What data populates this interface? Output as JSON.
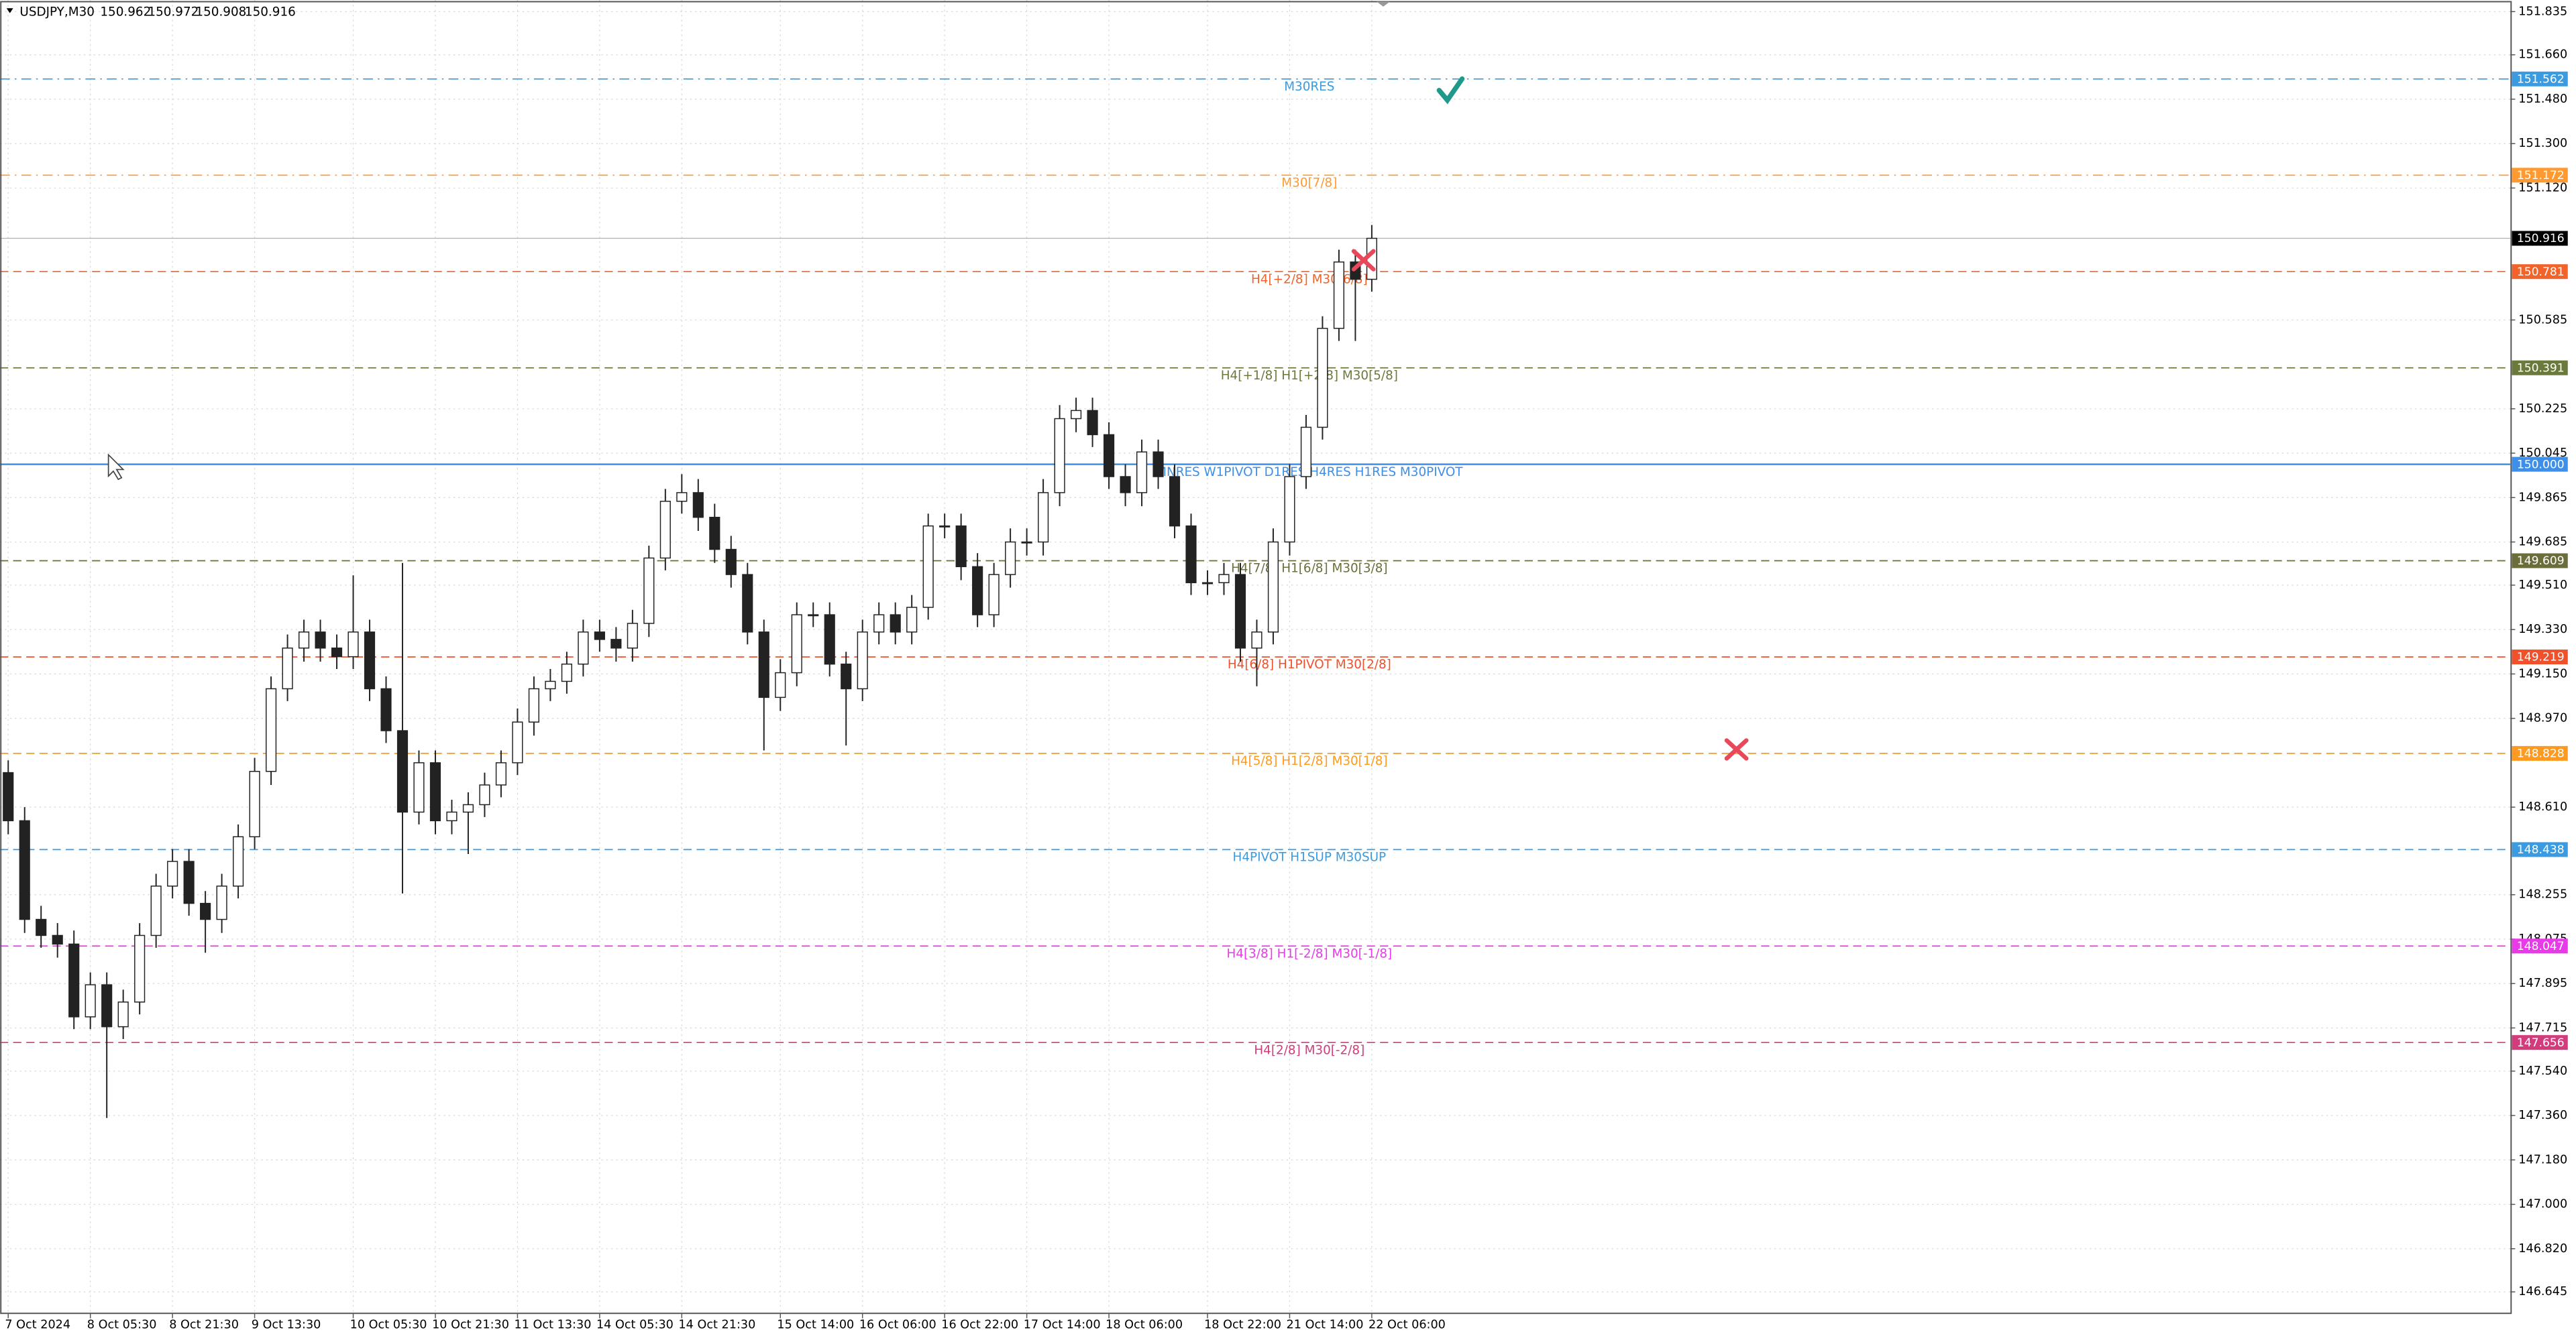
{
  "chart_data": {
    "type": "candlestick",
    "symbol": "USDJPY,M30",
    "quote": [
      150.962,
      150.972,
      150.908,
      150.916
    ],
    "ylim": [
      146.558,
      151.882
    ],
    "yticks": [
      151.835,
      {
        "value": 151.66,
        "label": "151.660"
      },
      {
        "value": 151.48,
        "label": "151.480"
      },
      {
        "value": 151.3,
        "label": "151.300"
      },
      {
        "value": 151.12,
        "label": "151.120"
      },
      150.585,
      150.225,
      150.045,
      149.865,
      149.685,
      {
        "value": 149.51,
        "label": "149.510"
      },
      {
        "value": 149.33,
        "label": "149.330"
      },
      {
        "value": 149.15,
        "label": "149.150"
      },
      {
        "value": 148.97,
        "label": "148.970"
      },
      {
        "value": 148.61,
        "label": "148.610"
      },
      148.255,
      148.075,
      147.895,
      147.715,
      {
        "value": 147.54,
        "label": "147.540"
      },
      {
        "value": 147.36,
        "label": "147.360"
      },
      {
        "value": 147.18,
        "label": "147.180"
      },
      {
        "value": 147.0,
        "label": "147.000"
      },
      {
        "value": 146.82,
        "label": "146.820"
      },
      146.645
    ],
    "grid": true,
    "categories": [
      "7 Oct 2024",
      null,
      null,
      null,
      null,
      "8 Oct 05:30",
      null,
      null,
      null,
      null,
      "8 Oct 21:30",
      null,
      null,
      null,
      null,
      "9 Oct 13:30",
      null,
      null,
      null,
      null,
      null,
      "10 Oct 05:30",
      null,
      null,
      null,
      null,
      "10 Oct 21:30",
      null,
      null,
      null,
      null,
      "11 Oct 13:30",
      null,
      null,
      null,
      null,
      "14 Oct 05:30",
      null,
      null,
      null,
      null,
      "14 Oct 21:30",
      null,
      null,
      null,
      null,
      null,
      "15 Oct 14:00",
      null,
      null,
      null,
      null,
      "16 Oct 06:00",
      null,
      null,
      null,
      null,
      "16 Oct 22:00",
      null,
      null,
      null,
      null,
      "17 Oct 14:00",
      null,
      null,
      null,
      null,
      "18 Oct 06:00",
      null,
      null,
      null,
      null,
      null,
      "18 Oct 22:00",
      null,
      null,
      null,
      null,
      "21 Oct 14:00",
      null,
      null,
      null,
      null,
      "22 Oct 06:00"
    ],
    "open": [
      148.75,
      148.555,
      148.155,
      148.09,
      148.055,
      147.76,
      147.89,
      147.72,
      147.82,
      148.09,
      148.29,
      148.39,
      148.22,
      148.155,
      148.29,
      148.49,
      148.755,
      149.09,
      149.255,
      149.32,
      149.255,
      149.22,
      149.32,
      149.09,
      148.92,
      148.59,
      148.79,
      148.555,
      148.59,
      148.62,
      148.7,
      148.79,
      148.955,
      149.09,
      149.12,
      149.19,
      149.32,
      149.29,
      149.255,
      149.355,
      149.62,
      149.85,
      149.885,
      149.785,
      149.655,
      149.553,
      149.32,
      149.055,
      149.155,
      149.39,
      149.39,
      149.19,
      149.09,
      149.32,
      149.39,
      149.32,
      149.42,
      149.75,
      149.75,
      149.585,
      149.39,
      149.553,
      149.685,
      149.685,
      149.885,
      150.185,
      150.218,
      150.12,
      149.95,
      149.885,
      150.05,
      149.95,
      149.75,
      149.52,
      149.52,
      149.553,
      149.255,
      149.32,
      149.685,
      149.95,
      150.15,
      150.551,
      150.82,
      150.75
    ],
    "high": [
      148.8,
      148.61,
      148.21,
      148.14,
      148.11,
      147.94,
      147.94,
      147.87,
      148.14,
      148.34,
      148.44,
      148.44,
      148.27,
      148.34,
      148.54,
      148.81,
      149.14,
      149.31,
      149.37,
      149.37,
      149.31,
      149.55,
      149.37,
      149.14,
      149.6,
      148.84,
      148.84,
      148.64,
      148.67,
      148.75,
      148.84,
      149.01,
      149.14,
      149.17,
      149.24,
      149.37,
      149.37,
      149.34,
      149.41,
      149.67,
      149.9,
      149.96,
      149.94,
      149.84,
      149.71,
      149.6,
      149.37,
      149.21,
      149.44,
      149.44,
      149.44,
      149.24,
      149.37,
      149.44,
      149.44,
      149.47,
      149.8,
      149.8,
      149.8,
      149.64,
      149.6,
      149.74,
      149.74,
      149.94,
      150.24,
      150.27,
      150.27,
      150.17,
      150.0,
      150.1,
      150.1,
      150.0,
      149.8,
      149.57,
      149.6,
      149.6,
      149.37,
      149.74,
      150.0,
      150.2,
      150.6,
      150.87,
      150.87,
      150.97
    ],
    "low": [
      148.5,
      148.1,
      148.04,
      148.0,
      147.71,
      147.71,
      147.35,
      147.67,
      147.77,
      148.04,
      148.24,
      148.17,
      148.02,
      148.1,
      148.24,
      148.44,
      148.7,
      149.04,
      149.2,
      149.2,
      149.17,
      149.17,
      149.04,
      148.87,
      148.26,
      148.54,
      148.5,
      148.5,
      148.42,
      148.57,
      148.65,
      148.74,
      148.9,
      149.04,
      149.07,
      149.14,
      149.24,
      149.2,
      149.2,
      149.3,
      149.57,
      149.8,
      149.73,
      149.6,
      149.5,
      149.27,
      148.84,
      149.0,
      149.1,
      149.34,
      149.14,
      148.86,
      149.04,
      149.27,
      149.27,
      149.27,
      149.37,
      149.7,
      149.53,
      149.34,
      149.34,
      149.5,
      149.63,
      149.63,
      149.83,
      150.13,
      150.07,
      149.9,
      149.83,
      149.83,
      149.9,
      149.7,
      149.47,
      149.47,
      149.47,
      149.2,
      149.1,
      149.27,
      149.63,
      149.9,
      150.1,
      150.5,
      150.5,
      150.7
    ],
    "close": [
      148.555,
      148.155,
      148.09,
      148.055,
      147.76,
      147.89,
      147.72,
      147.82,
      148.09,
      148.29,
      148.39,
      148.22,
      148.155,
      148.29,
      148.49,
      148.755,
      149.09,
      149.255,
      149.32,
      149.255,
      149.22,
      149.32,
      149.09,
      148.92,
      148.59,
      148.79,
      148.555,
      148.59,
      148.62,
      148.7,
      148.79,
      148.955,
      149.09,
      149.12,
      149.19,
      149.32,
      149.29,
      149.255,
      149.355,
      149.62,
      149.85,
      149.885,
      149.785,
      149.655,
      149.553,
      149.32,
      149.055,
      149.155,
      149.39,
      149.39,
      149.19,
      149.09,
      149.32,
      149.39,
      149.32,
      149.42,
      149.75,
      149.75,
      149.585,
      149.39,
      149.553,
      149.685,
      149.685,
      149.885,
      150.185,
      150.218,
      150.12,
      149.95,
      149.885,
      150.05,
      149.95,
      149.75,
      149.52,
      149.52,
      149.553,
      149.255,
      149.32,
      149.685,
      149.95,
      150.15,
      150.551,
      150.82,
      150.75,
      150.916
    ],
    "levels": [
      {
        "name": "M30RES",
        "value": 151.562,
        "color": "#3a9be0",
        "dash": "6 3 1 3"
      },
      {
        "name": "M30[7/8]",
        "value": 151.172,
        "color": "#ff9a30",
        "dash": "6 3 1 3"
      },
      {
        "name": "H4[+2/8] M30[6/8]",
        "value": 150.781,
        "color": "#f2632a",
        "dash": "5 3"
      },
      {
        "name": "H4[+1/8] H1[+2/8] M30[5/8]",
        "value": 150.391,
        "color": "#6b7a3a",
        "dash": "5 3"
      },
      {
        "name": "MNRES W1PIVOT D1RES H4RES H1RES M30PIVOT",
        "value": 150.0,
        "value_label": "150.000",
        "color": "#3d8fe8",
        "dash": "none"
      },
      {
        "name": "H4[7/8] H1[6/8] M30[3/8]",
        "value": 149.609,
        "color": "#6b6e3a",
        "dash": "5 3"
      },
      {
        "name": "H4[6/8] H1PIVOT M30[2/8]",
        "value": 149.219,
        "color": "#f0502a",
        "dash": "5 3"
      },
      {
        "name": "H4[5/8] H1[2/8] M30[1/8]",
        "value": 148.828,
        "color": "#ff9a20",
        "dash": "5 3"
      },
      {
        "name": "H4PIVOT H1SUP M30SUP",
        "value": 148.438,
        "color": "#3a9be0",
        "dash": "5 3"
      },
      {
        "name": "H4[3/8] H1[-2/8] M30[-1/8]",
        "value": 148.047,
        "color": "#e83ae8",
        "dash": "5 3"
      },
      {
        "name": "H4[2/8] M30[-2/8]",
        "value": 147.656,
        "color": "#d23c7c",
        "dash": "5 3"
      }
    ]
  }
}
